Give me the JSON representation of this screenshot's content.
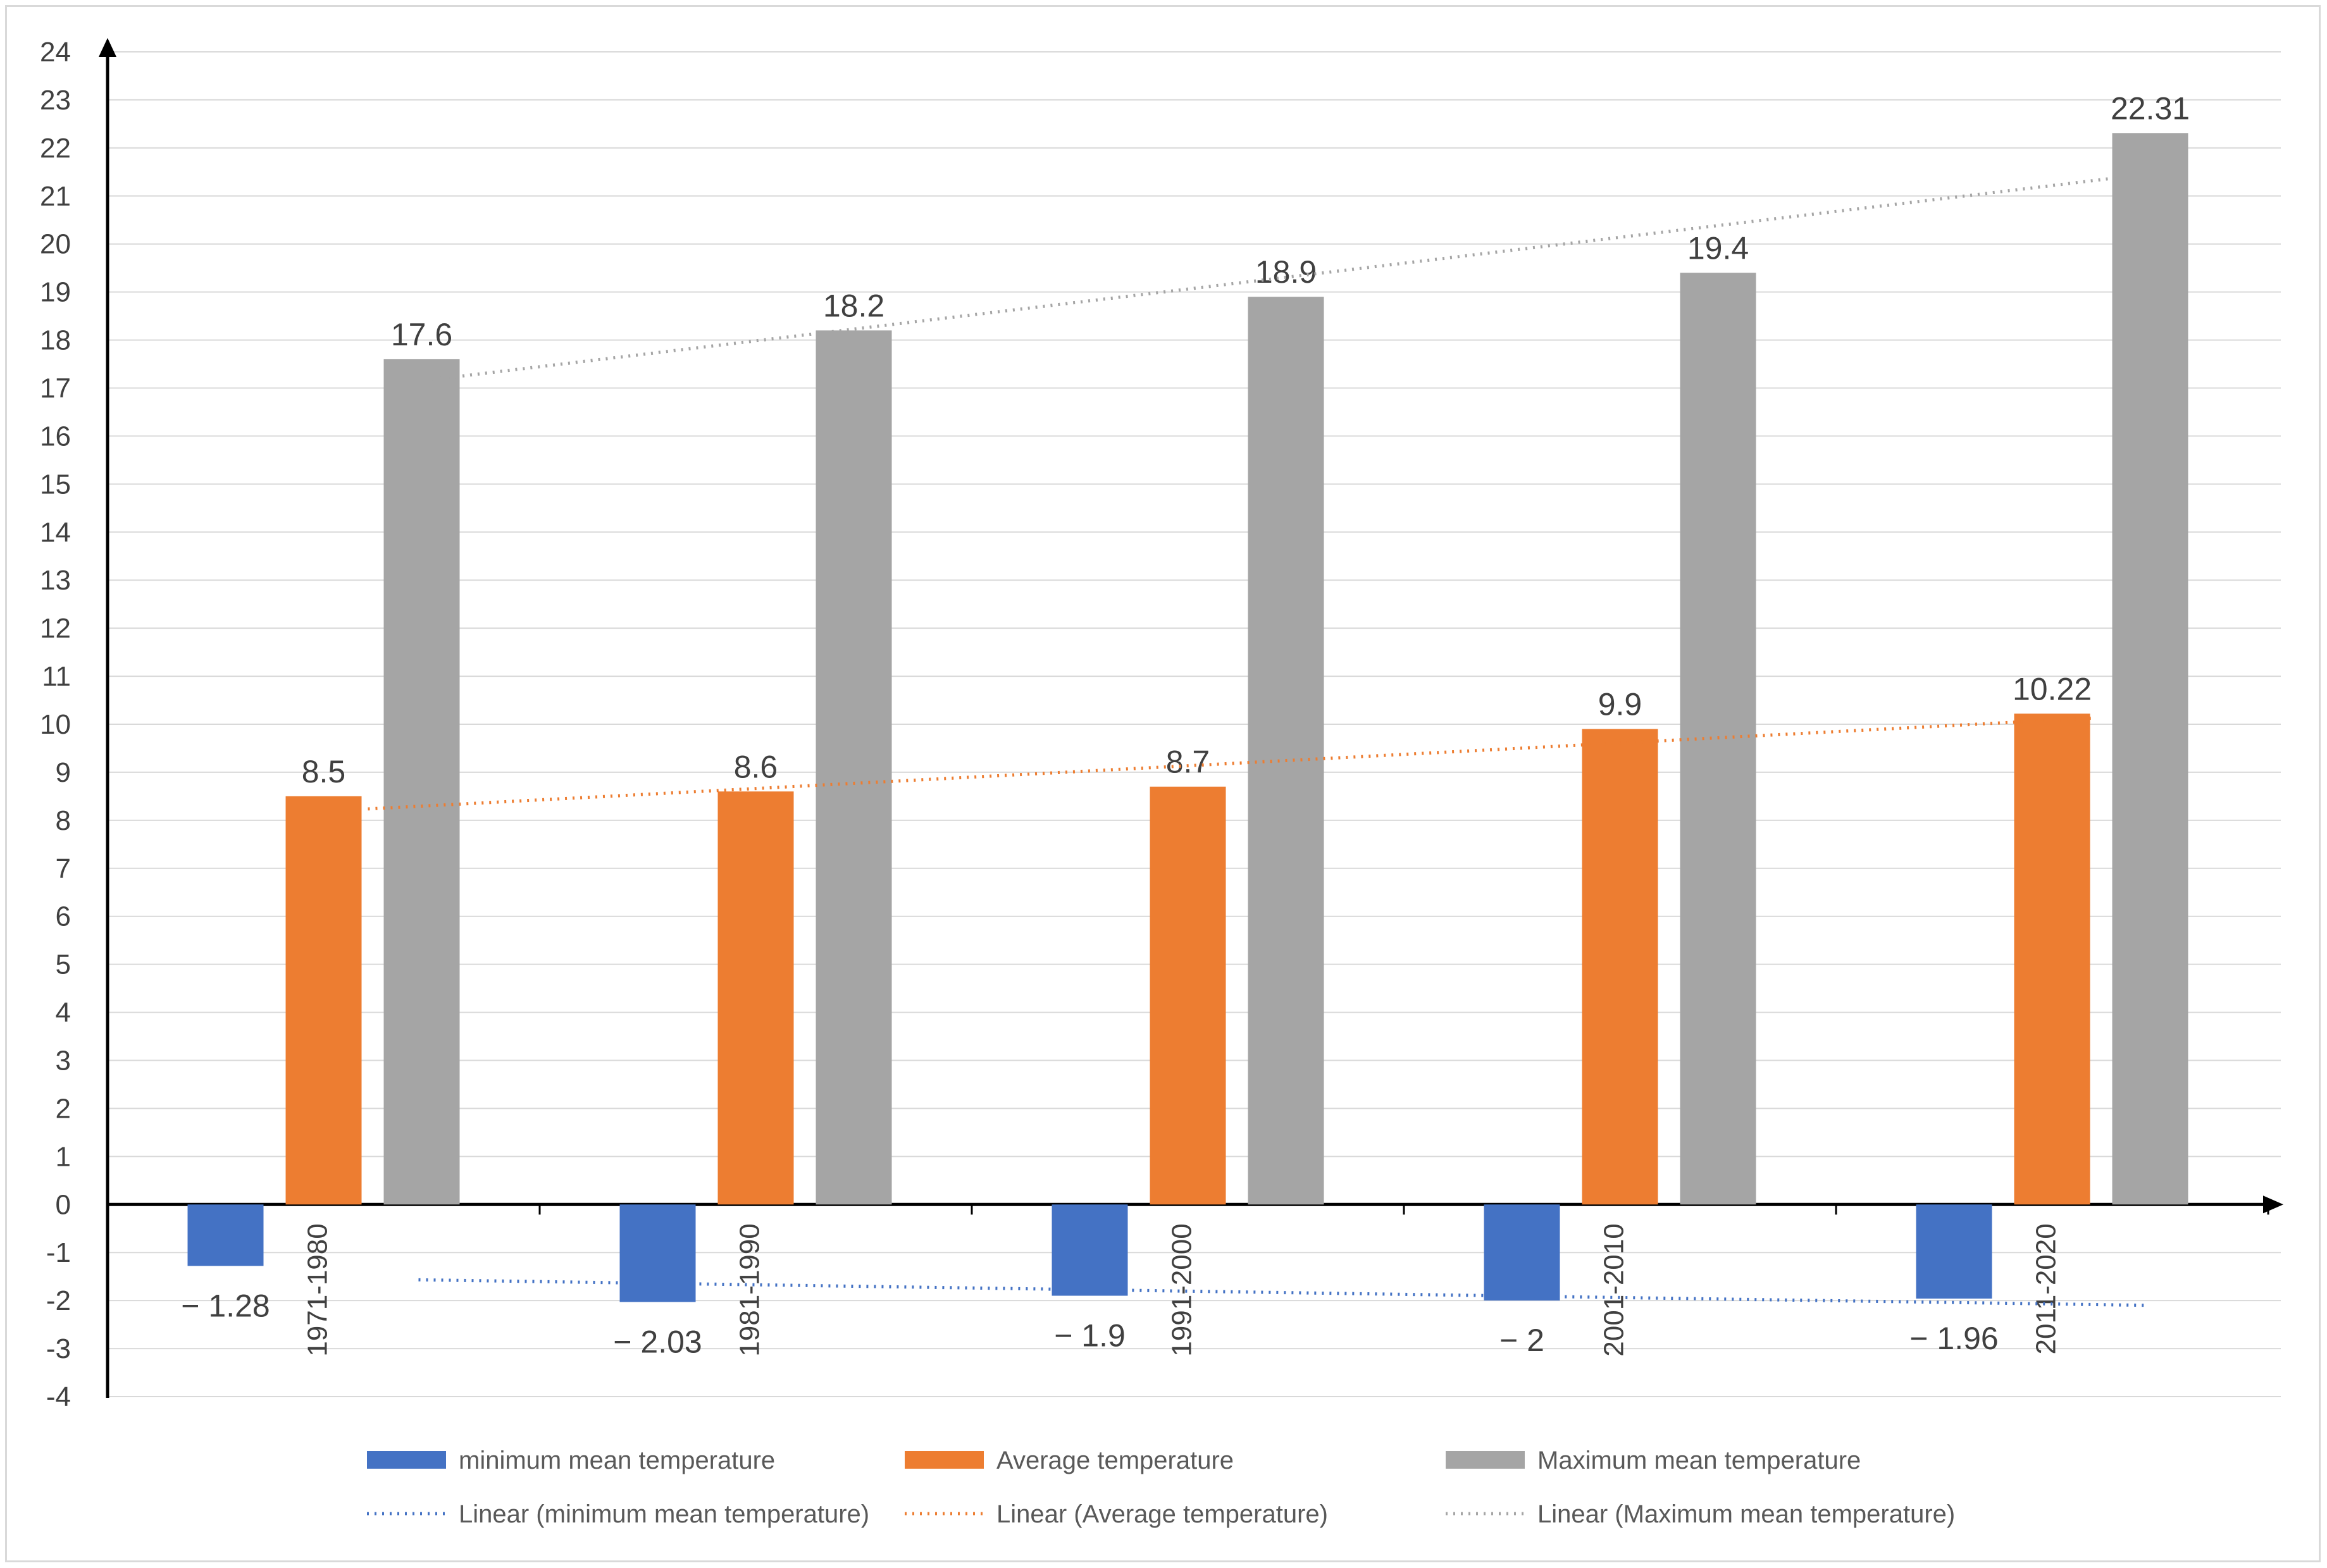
{
  "chart_data": {
    "type": "bar",
    "title": "",
    "xlabel": "",
    "ylabel": "",
    "ylim": [
      -4,
      24
    ],
    "ytick_step": 1,
    "grid": true,
    "legend_position": "bottom",
    "categories": [
      "1971-1980",
      "1981-1990",
      "1991-2000",
      "2001-2010",
      "2011-2020"
    ],
    "series": [
      {
        "name": "minimum mean temperature",
        "color": "#4472c4",
        "values": [
          -1.28,
          -2.03,
          -1.9,
          -2,
          -1.96
        ],
        "labels": [
          "− 1.28",
          "− 2.03",
          "− 1.9",
          "− 2",
          "− 1.96"
        ]
      },
      {
        "name": "Average temperature",
        "color": "#ed7d31",
        "values": [
          8.5,
          8.6,
          8.7,
          9.9,
          10.22
        ],
        "labels": [
          "8.5",
          "8.6",
          "8.7",
          "9.9",
          "10.22"
        ]
      },
      {
        "name": "Maximum mean temperature",
        "color": "#a5a5a5",
        "values": [
          17.6,
          18.2,
          18.9,
          19.4,
          22.31
        ],
        "labels": [
          "17.6",
          "18.2",
          "18.9",
          "19.4",
          "22.31"
        ]
      }
    ],
    "trendlines": [
      {
        "name": "Linear (minimum mean temperature)",
        "series_index": 0,
        "color": "#4472c4",
        "dash": "3,9"
      },
      {
        "name": "Linear (Average temperature)",
        "series_index": 1,
        "color": "#ed7d31",
        "dash": "3,9"
      },
      {
        "name": "Linear (Maximum mean temperature)",
        "series_index": 2,
        "color": "#a5a5a5",
        "dash": "3,9"
      }
    ]
  }
}
